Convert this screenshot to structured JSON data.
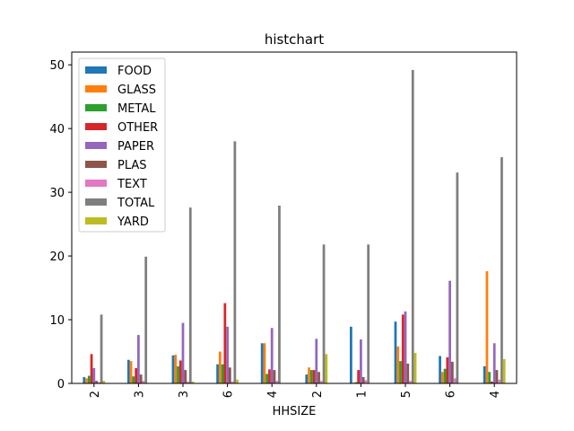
{
  "chart_data": {
    "type": "bar",
    "title": "histchart",
    "xlabel": "HHSIZE",
    "ylabel": "",
    "categories": [
      "2",
      "3",
      "3",
      "6",
      "4",
      "2",
      "1",
      "5",
      "6",
      "4"
    ],
    "ylim": [
      0,
      52
    ],
    "yticks": [
      0,
      10,
      20,
      30,
      40,
      50
    ],
    "grid": false,
    "legend_position": "top-left",
    "series": [
      {
        "name": "FOOD",
        "color": "#1f77b4",
        "values": [
          1.0,
          3.7,
          4.4,
          3.0,
          6.3,
          1.4,
          8.9,
          9.7,
          4.3,
          2.7
        ]
      },
      {
        "name": "GLASS",
        "color": "#ff7f0e",
        "values": [
          0.8,
          3.5,
          4.5,
          5.0,
          6.3,
          2.5,
          0.1,
          5.8,
          1.8,
          17.6
        ]
      },
      {
        "name": "METAL",
        "color": "#2ca02c",
        "values": [
          1.2,
          1.1,
          2.7,
          3.0,
          1.5,
          2.1,
          0.2,
          3.5,
          2.3,
          1.8
        ]
      },
      {
        "name": "OTHER",
        "color": "#d62728",
        "values": [
          4.6,
          2.4,
          3.6,
          12.6,
          2.2,
          2.1,
          2.1,
          10.8,
          4.1,
          0.3
        ]
      },
      {
        "name": "PAPER",
        "color": "#9467bd",
        "values": [
          2.4,
          7.6,
          9.5,
          8.9,
          8.7,
          7.0,
          6.9,
          11.3,
          16.1,
          6.3
        ]
      },
      {
        "name": "PLAS",
        "color": "#8c564b",
        "values": [
          0.4,
          1.4,
          2.1,
          2.5,
          2.1,
          1.8,
          1.0,
          3.1,
          3.4,
          2.1
        ]
      },
      {
        "name": "TEXT",
        "color": "#e377c2",
        "values": [
          0.2,
          0.4,
          0.3,
          0.3,
          0.4,
          0.4,
          0.5,
          0.4,
          0.8,
          0.6
        ]
      },
      {
        "name": "TOTAL",
        "color": "#7f7f7f",
        "values": [
          10.8,
          19.9,
          27.6,
          38.0,
          27.9,
          21.8,
          21.8,
          49.2,
          33.1,
          35.5
        ]
      },
      {
        "name": "YARD",
        "color": "#bcbd22",
        "values": [
          0.4,
          0.0,
          0.3,
          0.6,
          0.0,
          4.6,
          0.0,
          4.8,
          0.0,
          3.8
        ]
      }
    ]
  }
}
